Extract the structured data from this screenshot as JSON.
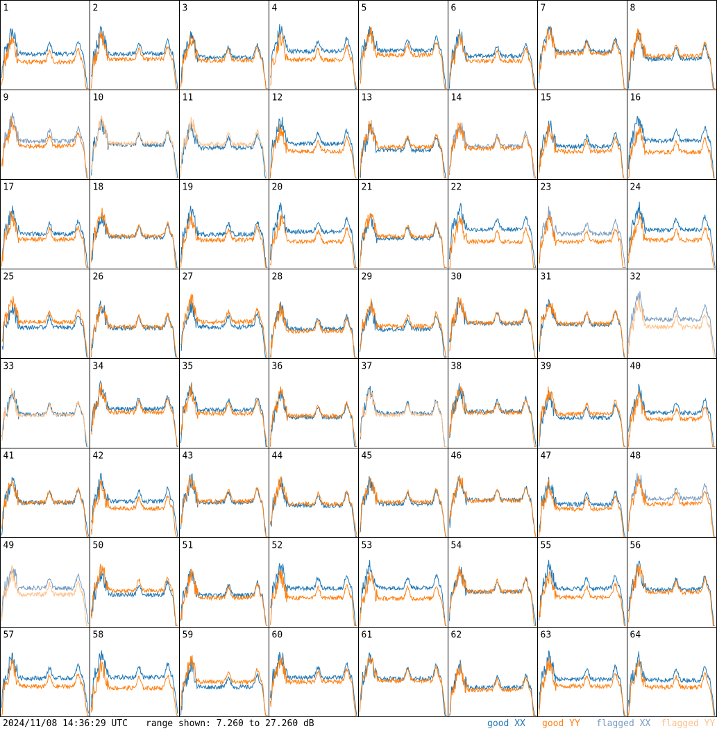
{
  "footer": {
    "timestamp": "2024/11/08 14:36:29 UTC",
    "range_text": "range shown: 7.260 to 27.260 dB",
    "legend": {
      "good_xx": "good XX",
      "good_yy": "good YY",
      "flagged_xx": "flagged XX",
      "flagged_yy": "flagged YY"
    }
  },
  "colors": {
    "good_xx": "#1f77b4",
    "good_yy": "#ff7f0e",
    "flagged_xx": "#7a9cc0",
    "flagged_yy": "#ffc08a",
    "border": "#000000",
    "background": "#ffffff"
  },
  "chart_data": {
    "type": "line",
    "layout": "8x8 small multiples",
    "xlabel": "",
    "ylabel": "",
    "ylim": [
      7.26,
      27.26
    ],
    "grid": false,
    "legend_position": "bottom-right",
    "panel_labels": [
      "1",
      "2",
      "3",
      "4",
      "5",
      "6",
      "7",
      "8",
      "9",
      "10",
      "11",
      "12",
      "13",
      "14",
      "15",
      "16",
      "17",
      "18",
      "19",
      "20",
      "21",
      "22",
      "23",
      "24",
      "25",
      "26",
      "27",
      "28",
      "29",
      "30",
      "31",
      "32",
      "33",
      "34",
      "35",
      "36",
      "37",
      "38",
      "39",
      "40",
      "41",
      "42",
      "43",
      "44",
      "45",
      "46",
      "47",
      "48",
      "49",
      "50",
      "51",
      "52",
      "53",
      "54",
      "55",
      "56",
      "57",
      "58",
      "59",
      "60",
      "61",
      "62",
      "63",
      "64"
    ],
    "panel_status": {
      "xx": [
        "good",
        "good",
        "good",
        "good",
        "good",
        "good",
        "good",
        "good",
        "flagged",
        "good",
        "good",
        "good",
        "good",
        "flagged",
        "good",
        "good",
        "good",
        "good",
        "good",
        "good",
        "good",
        "good",
        "flagged",
        "good",
        "good",
        "good",
        "good",
        "good",
        "good",
        "good",
        "good",
        "flagged",
        "good",
        "good",
        "good",
        "good",
        "good",
        "good",
        "good",
        "good",
        "good",
        "good",
        "good",
        "good",
        "good",
        "good",
        "good",
        "flagged",
        "flagged",
        "good",
        "good",
        "good",
        "good",
        "good",
        "good",
        "good",
        "good",
        "good",
        "good",
        "good",
        "good",
        "good",
        "good",
        "good"
      ],
      "yy": [
        "good",
        "good",
        "good",
        "good",
        "good",
        "good",
        "good",
        "good",
        "good",
        "flagged",
        "flagged",
        "good",
        "good",
        "good",
        "good",
        "good",
        "good",
        "good",
        "good",
        "good",
        "good",
        "good",
        "good",
        "good",
        "good",
        "good",
        "good",
        "good",
        "good",
        "good",
        "good",
        "flagged",
        "flagged",
        "good",
        "good",
        "good",
        "flagged",
        "good",
        "good",
        "good",
        "good",
        "good",
        "good",
        "good",
        "good",
        "good",
        "good",
        "good",
        "flagged",
        "good",
        "good",
        "good",
        "good",
        "good",
        "good",
        "good",
        "good",
        "good",
        "good",
        "good",
        "good",
        "good",
        "good",
        "good"
      ]
    },
    "series": [
      {
        "name": "good XX"
      },
      {
        "name": "good YY"
      },
      {
        "name": "flagged XX"
      },
      {
        "name": "flagged YY"
      }
    ]
  }
}
